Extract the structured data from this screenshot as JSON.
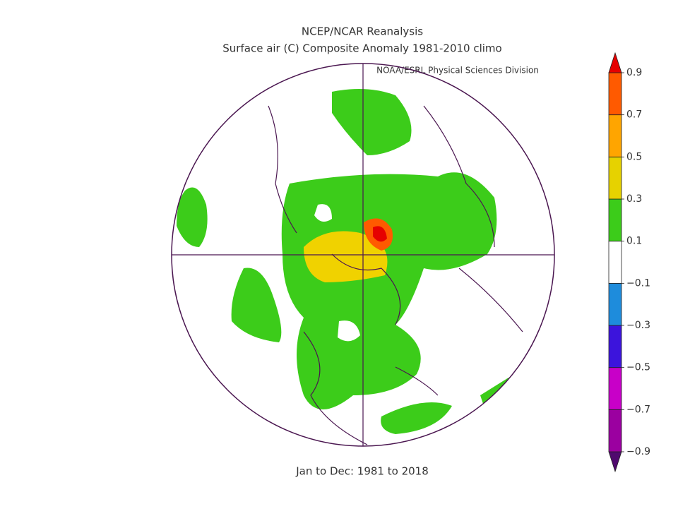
{
  "header": {
    "title": "NCEP/NCAR Reanalysis",
    "subtitle": "Surface air (C) Composite Anomaly 1981-2010 climo",
    "credit": "NOAA/ESRL Physical Sciences Division",
    "footer": "Jan to Dec: 1981 to 2018"
  },
  "colorbar": {
    "ticks": [
      {
        "value": -0.9,
        "label": "−0.9"
      },
      {
        "value": -0.7,
        "label": "−0.7"
      },
      {
        "value": -0.5,
        "label": "−0.5"
      },
      {
        "value": -0.3,
        "label": "−0.3"
      },
      {
        "value": -0.1,
        "label": "−0.1"
      },
      0.1,
      0.3,
      0.5,
      0.7,
      0.9
    ],
    "colors": [
      "#500a6e",
      "#9b00a0",
      "#c800c8",
      "#3c14dc",
      "#1e8cdc",
      "#ffffff",
      "#3ccc1a",
      "#e6d200",
      "#ffa500",
      "#ff5a00",
      "#e60000"
    ]
  }
}
